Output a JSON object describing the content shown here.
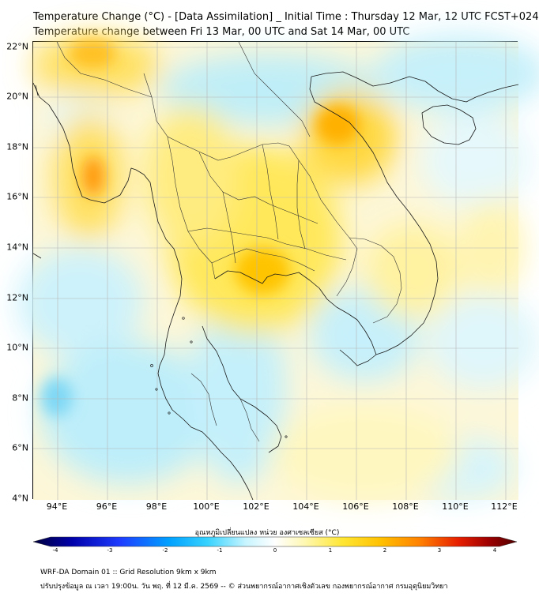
{
  "title": {
    "line1": "Temperature Change (°C) - [Data Assimilation] _ Initial Time : Thursday 12 Mar, 12 UTC FCST+024",
    "line2": "Temperature change between Fri 13 Mar, 00 UTC and Sat 14 Mar, 00 UTC"
  },
  "map": {
    "lat_labels": [
      "22°N",
      "20°N",
      "18°N",
      "16°N",
      "14°N",
      "12°N",
      "10°N",
      "8°N",
      "6°N",
      "4°N"
    ],
    "lon_labels": [
      "94°E",
      "96°E",
      "98°E",
      "100°E",
      "102°E",
      "104°E",
      "106°E",
      "108°E",
      "110°E",
      "112°E"
    ],
    "lat_range": [
      4,
      22.2
    ],
    "lon_range": [
      93,
      112.5
    ],
    "grid": true
  },
  "colorbar": {
    "title": "อุณหภูมิเปลี่ยนแปลง หน่วย องศาเซลเซียส (°C)",
    "ticks": [
      "-4",
      "-3",
      "-2",
      "-1",
      "0",
      "1",
      "2",
      "3",
      "4"
    ],
    "range": [
      -4,
      4
    ],
    "colors": [
      "#00003c",
      "#0000aa",
      "#1e3cff",
      "#00a0ff",
      "#36d2ff",
      "#c8f5ff",
      "#ffffff",
      "#fff8b4",
      "#ffe632",
      "#ffc000",
      "#ff8000",
      "#e61e00",
      "#a00000",
      "#500000"
    ]
  },
  "footer": {
    "line1": "WRF-DA Domain 01 :: Grid Resolution 9km x 9km",
    "line2": "ปรับปรุงข้อมูล ณ เวลา 19:00น. วัน พฤ. ที่ 12 มี.ค. 2569 -- © ส่วนพยากรณ์อากาศเชิงตัวเลข กองพยากรณ์อากาศ กรมอุตุนิยมวิทยา"
  }
}
